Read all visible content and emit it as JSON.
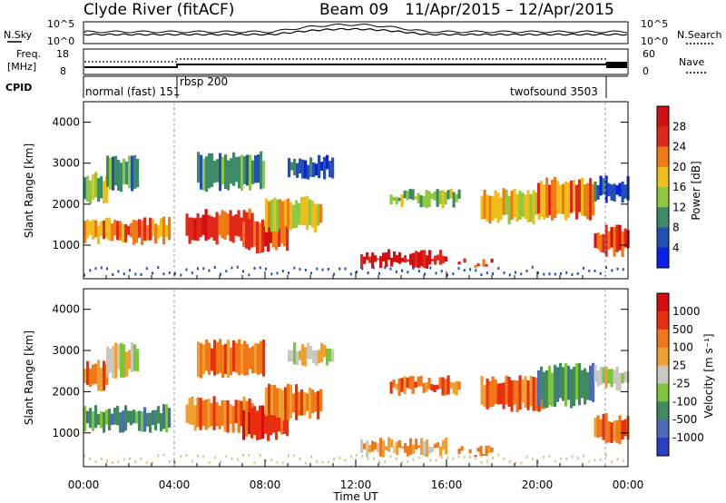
{
  "header": {
    "station": "Clyde River (fitACF)",
    "beam": "Beam 09",
    "date_range": "11/Apr/2015 – 12/Apr/2015"
  },
  "panels": {
    "noise": {
      "left_label": "N.Sky",
      "right_label": "N.Search",
      "left_ticks": [
        "10^5",
        "10^0"
      ],
      "right_ticks": [
        "10^5",
        "10^0"
      ]
    },
    "freq": {
      "left_label_1": "Freq.",
      "left_label_2": "[MHz]",
      "right_label": "Nave",
      "left_ticks": [
        "18",
        "8"
      ],
      "right_ticks": [
        "60",
        "0"
      ]
    },
    "cpid": {
      "label": "CPID",
      "modes": [
        {
          "name": "normal (fast) 151",
          "start_hour": 0
        },
        {
          "name": "rbsp 200",
          "start_hour": 4
        },
        {
          "name": "twofsound 3503",
          "start_hour": 23
        }
      ]
    }
  },
  "chart_data": [
    {
      "type": "heatmap",
      "title": "",
      "ylabel": "Slant Range [km]",
      "xlabel": "",
      "ylim": [
        180,
        4500
      ],
      "yticks": [
        1000,
        2000,
        3000,
        4000
      ],
      "xlim_hours": [
        0,
        24
      ],
      "colorbar": {
        "label": "Power [dB]",
        "ticks": [
          "4",
          "8",
          "12",
          "16",
          "20",
          "24",
          "28"
        ],
        "colors": [
          "#0a1ef0",
          "#234fb5",
          "#3d8a66",
          "#8ec83c",
          "#f0be1a",
          "#f07a14",
          "#e0281a",
          "#d40f0f"
        ]
      }
    },
    {
      "type": "heatmap",
      "title": "",
      "ylabel": "Slant Range [km]",
      "xlabel": "Time UT",
      "ylim": [
        180,
        4500
      ],
      "yticks": [
        1000,
        2000,
        3000,
        4000
      ],
      "xlim_hours": [
        0,
        24
      ],
      "x_tick_labels": [
        "00:00",
        "04:00",
        "08:00",
        "12:00",
        "16:00",
        "20:00",
        "00:00"
      ],
      "colorbar": {
        "label": "Velocity [m s⁻¹]",
        "ticks": [
          "1000",
          "500",
          "100",
          "25",
          "-25",
          "-100",
          "-500",
          "-1000"
        ],
        "colors": [
          "#2a3fc4",
          "#4a6ab8",
          "#3f8a5e",
          "#7cc43a",
          "#c8c8c0",
          "#f0a030",
          "#f07818",
          "#e83010",
          "#d80c0c"
        ]
      }
    }
  ]
}
